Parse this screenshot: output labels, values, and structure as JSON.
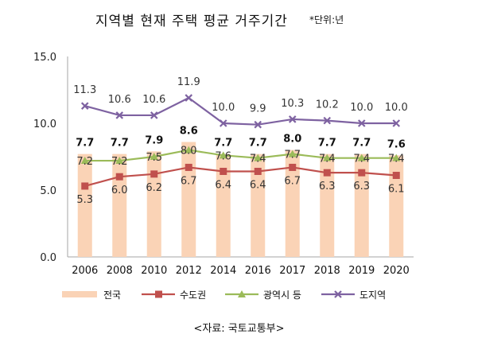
{
  "title": "지역별 현재 주택 평균 거주기간",
  "unit_note": "*단위:년",
  "source": "<자료: 국토교통부>",
  "chart_data": {
    "type": "bar",
    "categories": [
      "2006",
      "2008",
      "2010",
      "2012",
      "2014",
      "2016",
      "2017",
      "2018",
      "2019",
      "2020"
    ],
    "ylim": [
      0,
      15
    ],
    "yticks": [
      "0.0",
      "5.0",
      "10.0",
      "15.0"
    ],
    "legend_position": "bottom",
    "grid": false,
    "series": [
      {
        "name": "전국",
        "type": "bar",
        "color": "#FAD3B6",
        "values": [
          7.7,
          7.7,
          7.9,
          8.6,
          7.7,
          7.7,
          8.0,
          7.7,
          7.7,
          7.6
        ],
        "labels": [
          "7.7",
          "7.7",
          "7.9",
          "8.6",
          "7.7",
          "7.7",
          "8.0",
          "7.7",
          "7.7",
          "7.6"
        ]
      },
      {
        "name": "수도권",
        "type": "line",
        "color": "#C0504D",
        "marker": "square",
        "values": [
          5.3,
          6.0,
          6.2,
          6.7,
          6.4,
          6.4,
          6.7,
          6.3,
          6.3,
          6.1
        ],
        "labels": [
          "5.3",
          "6.0",
          "6.2",
          "6.7",
          "6.4",
          "6.4",
          "6.7",
          "6.3",
          "6.3",
          "6.1"
        ]
      },
      {
        "name": "광역시 등",
        "type": "line",
        "color": "#9BBB59",
        "marker": "triangle",
        "values": [
          7.2,
          7.2,
          7.5,
          8.0,
          7.6,
          7.4,
          7.7,
          7.4,
          7.4,
          7.4
        ],
        "labels": [
          "7.2",
          "7.2",
          "7.5",
          "8.0",
          "7.6",
          "7.4",
          "7.7",
          "7.4",
          "7.4",
          "7.4"
        ]
      },
      {
        "name": "도지역",
        "type": "line",
        "color": "#7E62A1",
        "marker": "x",
        "values": [
          11.3,
          10.6,
          10.6,
          11.9,
          10.0,
          9.9,
          10.3,
          10.2,
          10.0,
          10.0
        ],
        "labels": [
          "11.3",
          "10.6",
          "10.6",
          "11.9",
          "10.0",
          "9.9",
          "10.3",
          "10.2",
          "10.0",
          "10.0"
        ]
      }
    ]
  }
}
